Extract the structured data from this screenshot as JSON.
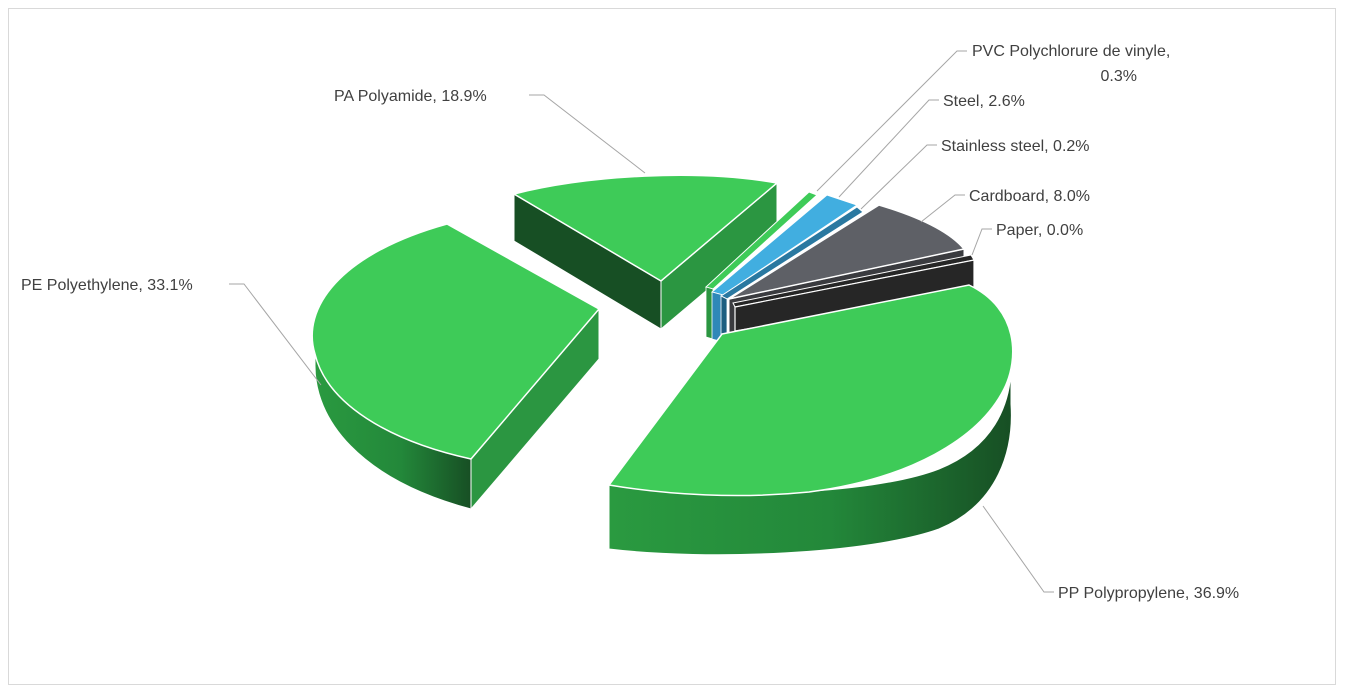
{
  "chart_data": {
    "type": "pie",
    "title": "",
    "style": "3d-exploded",
    "slices": [
      {
        "name": "PP Polypropylene",
        "value": 36.9,
        "label": "PP Polypropylene, 36.9%",
        "color": "#3ecb58"
      },
      {
        "name": "PE Polyethylene",
        "value": 33.1,
        "label": "PE Polyethylene, 33.1%",
        "color": "#3ecb58"
      },
      {
        "name": "PA Polyamide",
        "value": 18.9,
        "label": "PA Polyamide, 18.9%",
        "color": "#3ecb58"
      },
      {
        "name": "PVC Polychlorure de vinyle",
        "value": 0.3,
        "label_line1": "PVC Polychlorure de vinyle,",
        "label_line2": "0.3%",
        "color": "#3ecb58"
      },
      {
        "name": "Steel",
        "value": 2.6,
        "label": "Steel, 2.6%",
        "color": "#41aee0"
      },
      {
        "name": "Stainless steel",
        "value": 0.2,
        "label": "Stainless steel, 0.2%",
        "color": "#2a78a0"
      },
      {
        "name": "Cardboard",
        "value": 8.0,
        "label": "Cardboard, 8.0%",
        "color": "#5e6066"
      },
      {
        "name": "Paper",
        "value": 0.0,
        "label": "Paper, 0.0%",
        "color": "#262626"
      }
    ]
  }
}
